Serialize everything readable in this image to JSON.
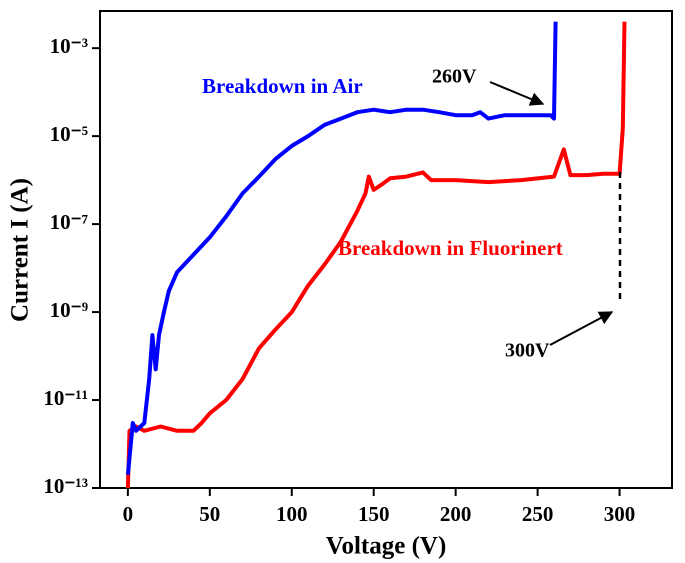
{
  "chart_data": {
    "type": "line",
    "xlabel": "Voltage (V)",
    "ylabel": "Current I (A)",
    "log_y": true,
    "xlim": [
      -17,
      332
    ],
    "ylim": [
      1e-13,
      0.007
    ],
    "xticks": [
      0,
      50,
      100,
      150,
      200,
      250,
      300
    ],
    "yticks": [
      {
        "value": 1e-13,
        "label": "10⁻¹³"
      },
      {
        "value": 1e-11,
        "label": "10⁻¹¹"
      },
      {
        "value": 1e-09,
        "label": "10⁻⁹"
      },
      {
        "value": 1e-07,
        "label": "10⁻⁷"
      },
      {
        "value": 1e-05,
        "label": "10⁻⁵"
      },
      {
        "value": 0.001,
        "label": "10⁻³"
      }
    ],
    "series": [
      {
        "name": "Breakdown in Air",
        "color": "#0000ff",
        "x": [
          0,
          3,
          5,
          10,
          13,
          15,
          17,
          19,
          22,
          25,
          30,
          40,
          50,
          60,
          70,
          80,
          90,
          100,
          110,
          120,
          130,
          140,
          150,
          160,
          170,
          180,
          190,
          200,
          210,
          215,
          220,
          230,
          240,
          250,
          258,
          260,
          261
        ],
        "values": [
          2e-13,
          3e-12,
          2e-12,
          3e-12,
          3e-11,
          3e-10,
          5e-11,
          3e-10,
          1e-09,
          3e-09,
          8e-09,
          2e-08,
          5e-08,
          1.5e-07,
          5e-07,
          1.2e-06,
          3e-06,
          6e-06,
          1e-05,
          1.8e-05,
          2.5e-05,
          3.5e-05,
          4e-05,
          3.5e-05,
          4e-05,
          4e-05,
          3.5e-05,
          3e-05,
          3e-05,
          3.5e-05,
          2.5e-05,
          3e-05,
          3e-05,
          3e-05,
          3e-05,
          2.5e-05,
          0.004
        ]
      },
      {
        "name": "Breakdown in Fluorinert",
        "color": "#ff0000",
        "x": [
          0,
          1,
          5,
          10,
          20,
          30,
          40,
          45,
          50,
          60,
          70,
          80,
          90,
          100,
          110,
          120,
          130,
          140,
          145,
          147,
          150,
          155,
          160,
          170,
          180,
          185,
          200,
          220,
          240,
          260,
          266,
          270,
          280,
          290,
          300,
          302,
          303
        ],
        "values": [
          1e-13,
          2e-12,
          2.5e-12,
          2e-12,
          2.5e-12,
          2e-12,
          2e-12,
          3e-12,
          5e-12,
          1e-11,
          3e-11,
          1.5e-10,
          4e-10,
          1e-09,
          4e-09,
          1.2e-08,
          4e-08,
          2e-07,
          5e-07,
          1.2e-06,
          6e-07,
          8e-07,
          1.1e-06,
          1.2e-06,
          1.5e-06,
          1e-06,
          1e-06,
          9e-07,
          1e-06,
          1.2e-06,
          5e-06,
          1.3e-06,
          1.3e-06,
          1.4e-06,
          1.4e-06,
          1.5e-05,
          0.004
        ]
      }
    ],
    "annotations": [
      "260V",
      "300V"
    ]
  }
}
